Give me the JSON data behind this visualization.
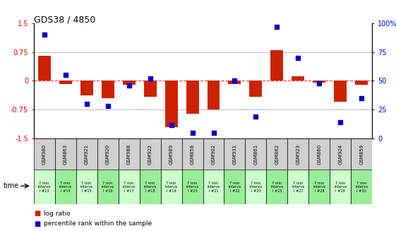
{
  "title": "GDS38 / 4850",
  "samples": [
    "GSM980",
    "GSM863",
    "GSM921",
    "GSM920",
    "GSM988",
    "GSM922",
    "GSM989",
    "GSM858",
    "GSM902",
    "GSM931",
    "GSM861",
    "GSM862",
    "GSM923",
    "GSM860",
    "GSM924",
    "GSM859"
  ],
  "time_labels": [
    "7 min\ninterva\nl #13",
    "7 min\ninterva\nl #14",
    "7 min\ninterva\nl #15",
    "7 min\ninterva\nl #16",
    "7 min\ninterva\nl #17",
    "7 min\ninterva\nl #18",
    "7 min\ninterva\nl #19",
    "7 min\ninterva\nl #20",
    "7 min\ninterva\nl #21",
    "7 min\ninterva\nl #22",
    "7 min\ninterva\nl #23",
    "7 min\ninterva\nl #25",
    "7 min\ninterva\nl #27",
    "7 min\ninterva\nl #28",
    "7 min\ninterva\nl #29",
    "7 min\ninterva\nl #30"
  ],
  "log_ratio": [
    0.65,
    -0.08,
    -0.37,
    -0.45,
    -0.1,
    -0.42,
    -1.2,
    -0.85,
    -0.75,
    -0.08,
    -0.42,
    0.8,
    0.12,
    -0.05,
    -0.55,
    -0.1
  ],
  "percentile": [
    90,
    55,
    30,
    28,
    46,
    52,
    12,
    5,
    5,
    50,
    19,
    97,
    70,
    48,
    14,
    35
  ],
  "ylim_left": [
    -1.5,
    1.5
  ],
  "ylim_right": [
    0,
    100
  ],
  "yticks_left": [
    -1.5,
    -0.75,
    0,
    0.75,
    1.5
  ],
  "ytick_labels_left": [
    "-1.5",
    "-0.75",
    "0",
    "0.75",
    "1.5"
  ],
  "yticks_right": [
    0,
    25,
    50,
    75,
    100
  ],
  "ytick_labels_right": [
    "0",
    "25",
    "50",
    "75",
    "100%"
  ],
  "hlines_dotted": [
    0.75,
    -0.75
  ],
  "hline_zero": 0,
  "bar_color": "#cc2200",
  "dot_color": "#0000cc",
  "bg_sample_gray": "#d0d0d0",
  "bg_green_light": "#ccffcc",
  "bg_green_dark": "#99ee99",
  "plot_bg": "#ffffff",
  "legend_bar_label": "log ratio",
  "legend_dot_label": "percentile rank within the sample"
}
